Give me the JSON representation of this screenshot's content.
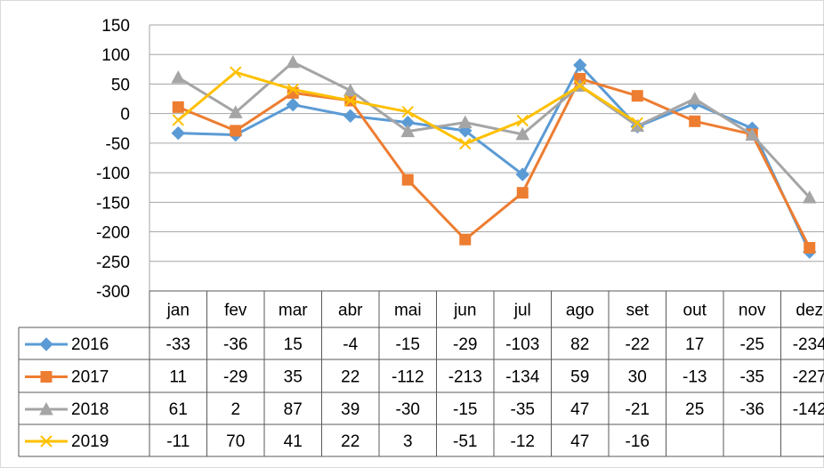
{
  "chart_data": {
    "type": "line",
    "categories": [
      "jan",
      "fev",
      "mar",
      "abr",
      "mai",
      "jun",
      "jul",
      "ago",
      "set",
      "out",
      "nov",
      "dez"
    ],
    "series": [
      {
        "name": "2016",
        "color": "#5b9bd5",
        "marker": "diamond",
        "values": [
          -33,
          -36,
          15,
          -4,
          -15,
          -29,
          -103,
          82,
          -22,
          17,
          -25,
          -234
        ]
      },
      {
        "name": "2017",
        "color": "#ed7d31",
        "marker": "square",
        "values": [
          11,
          -29,
          35,
          22,
          -112,
          -213,
          -134,
          59,
          30,
          -13,
          -35,
          -227
        ]
      },
      {
        "name": "2018",
        "color": "#a5a5a5",
        "marker": "triangle",
        "values": [
          61,
          2,
          87,
          39,
          -30,
          -15,
          -35,
          47,
          -21,
          25,
          -36,
          -142
        ]
      },
      {
        "name": "2019",
        "color": "#ffc000",
        "marker": "x",
        "values": [
          -11,
          70,
          41,
          22,
          3,
          -51,
          -12,
          47,
          -16,
          null,
          null,
          null
        ]
      }
    ],
    "ylim": [
      -300,
      150
    ],
    "yticks": [
      -300,
      -250,
      -200,
      -150,
      -100,
      -50,
      0,
      50,
      100,
      150
    ],
    "grid": true,
    "data_table": true
  }
}
